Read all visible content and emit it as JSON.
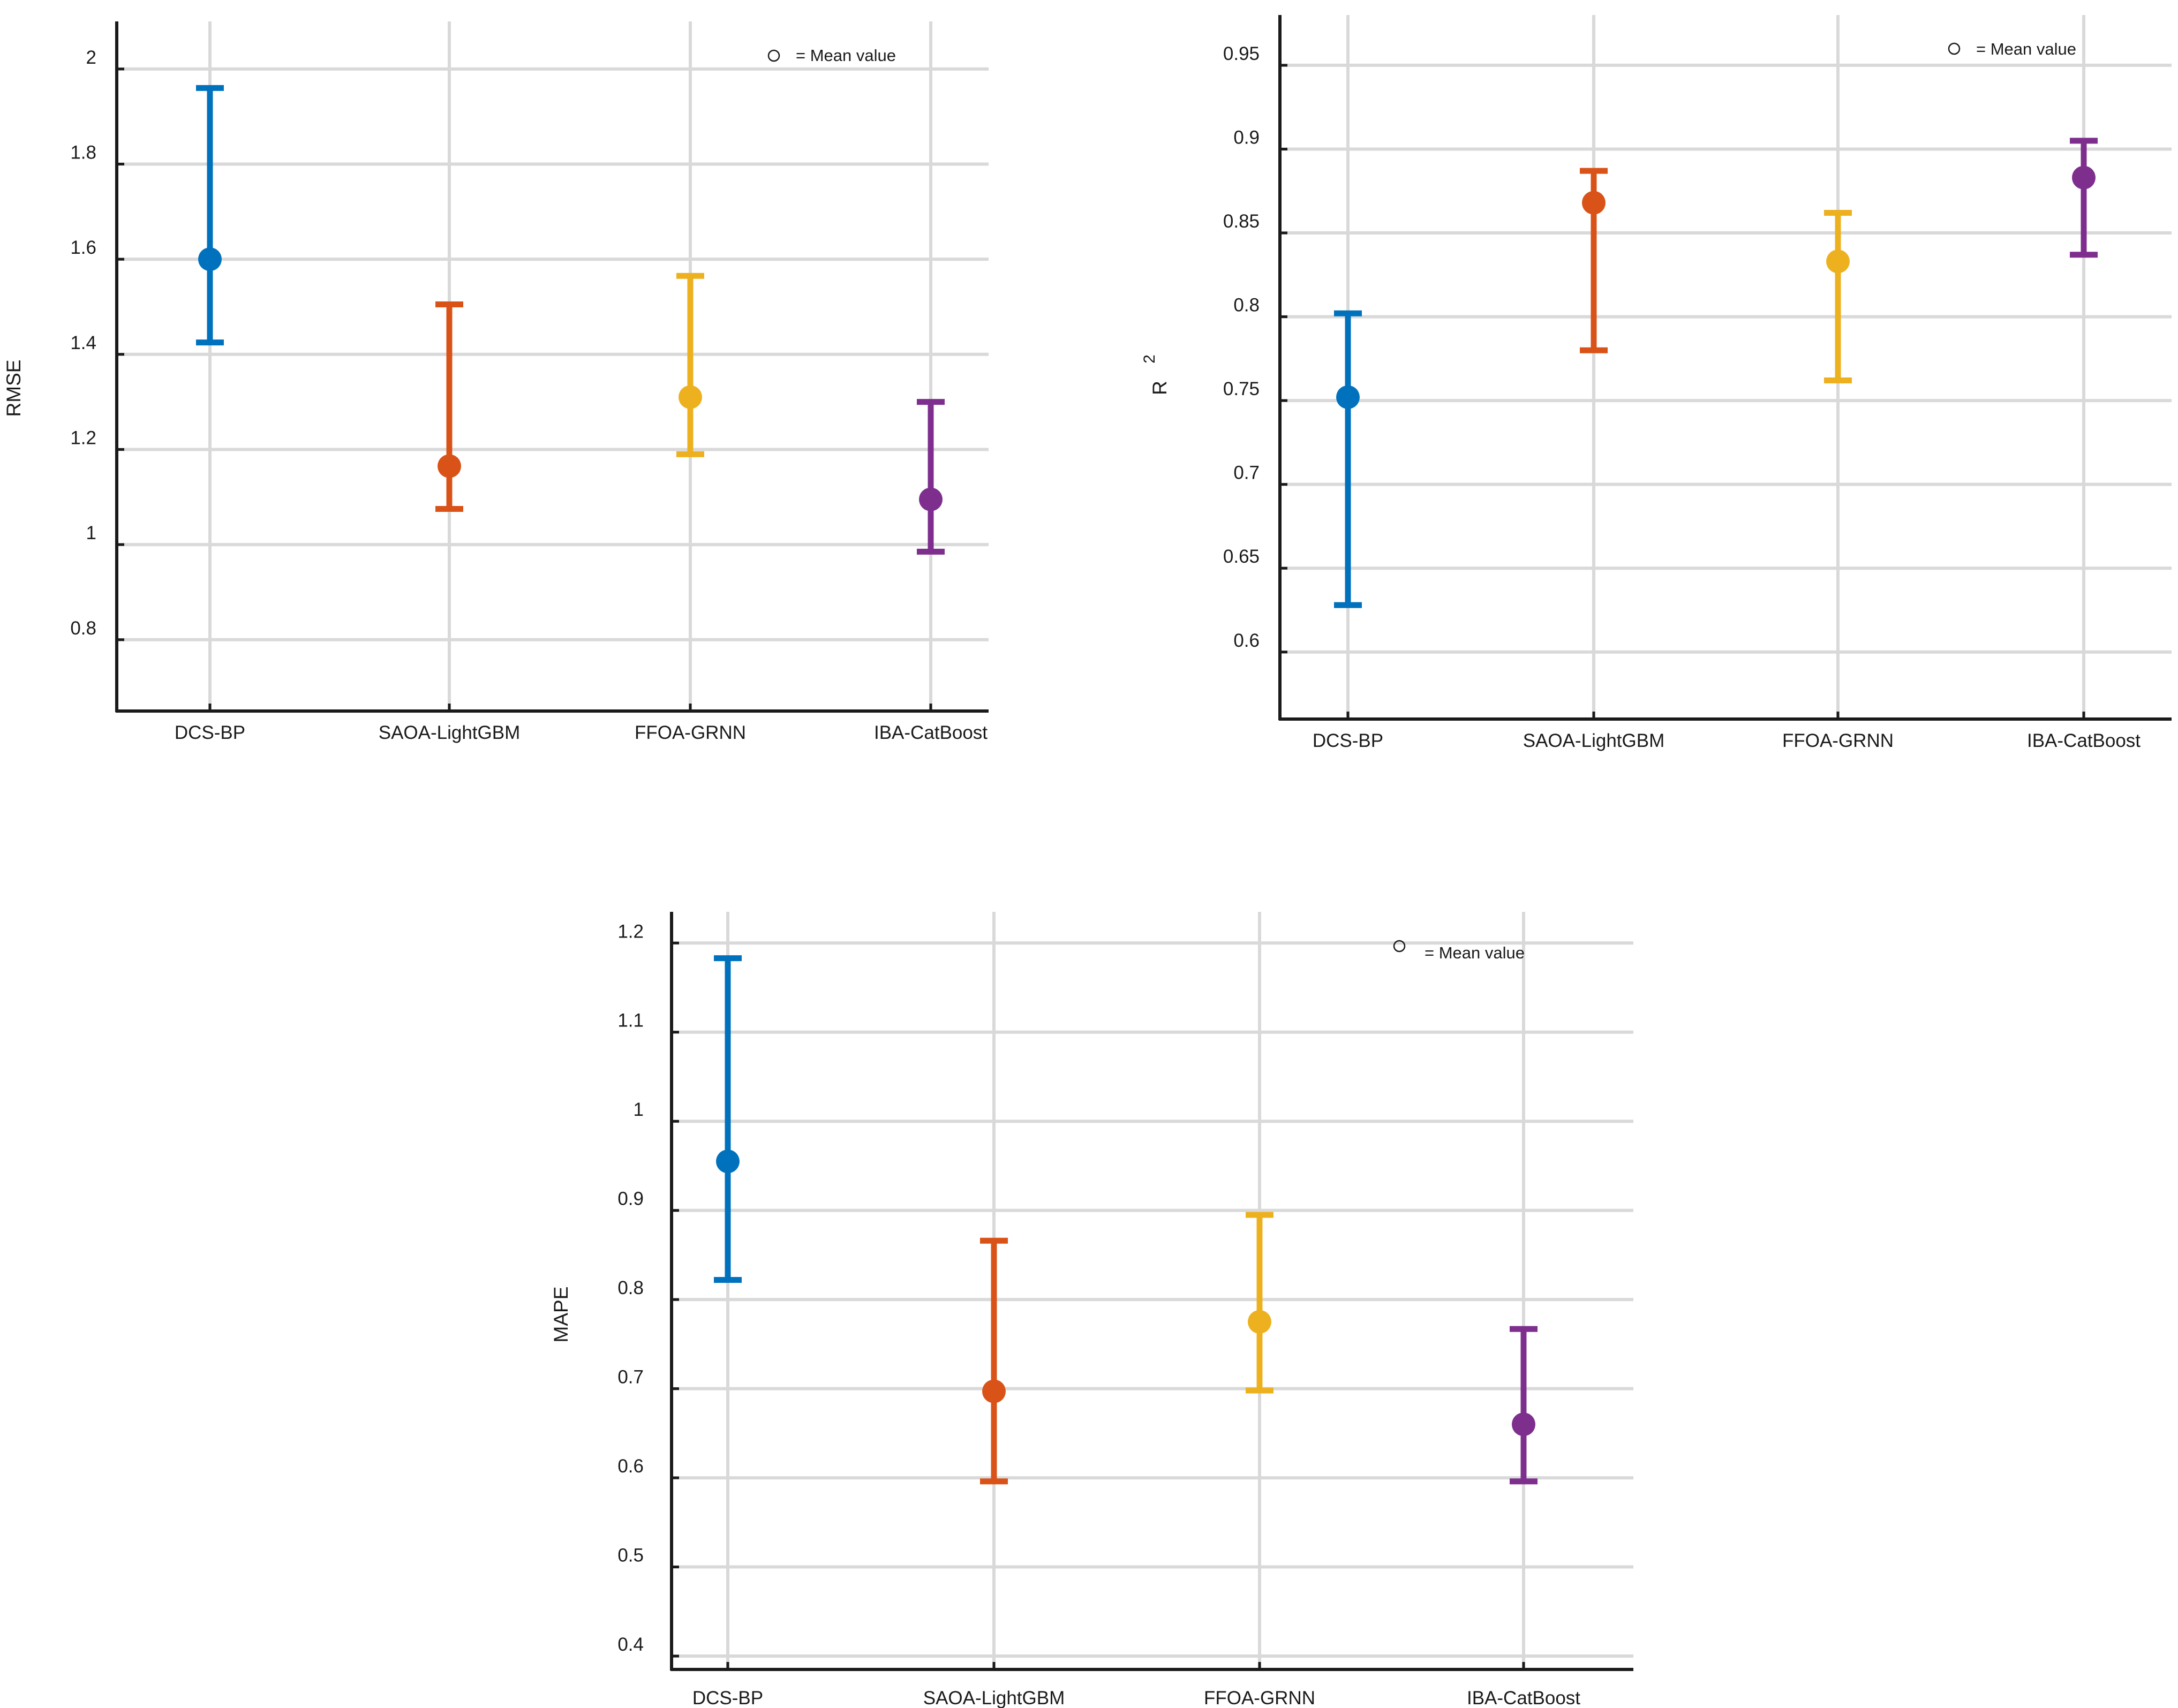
{
  "chart_data": [
    {
      "type": "errorbar",
      "ylabel": "RMSE",
      "ylim": [
        0.65,
        2.1
      ],
      "yticks": [
        0.8,
        1,
        1.2,
        1.4,
        1.6,
        1.8,
        2
      ],
      "ytick_labels": [
        "0.8",
        "1",
        "1.2",
        "1.4",
        "1.6",
        "1.8",
        "2"
      ],
      "categories": [
        "DCS-BP",
        "SAOA-LightGBM",
        "FFOA-GRNN",
        "IBA-CatBoost"
      ],
      "means": [
        1.6,
        1.165,
        1.31,
        1.095
      ],
      "lower": [
        1.425,
        1.075,
        1.19,
        0.985
      ],
      "upper": [
        1.96,
        1.505,
        1.565,
        1.3
      ],
      "legend": "= Mean value",
      "grid": true
    },
    {
      "type": "errorbar",
      "ylabel": "R",
      "ylabel_superscript": "2",
      "ylim": [
        0.56,
        0.98
      ],
      "yticks": [
        0.6,
        0.65,
        0.7,
        0.75,
        0.8,
        0.85,
        0.9,
        0.95
      ],
      "ytick_labels": [
        "0.6",
        "0.65",
        "0.7",
        "0.75",
        "0.8",
        "0.85",
        "0.9",
        "0.95"
      ],
      "categories": [
        "DCS-BP",
        "SAOA-LightGBM",
        "FFOA-GRNN",
        "IBA-CatBoost"
      ],
      "means": [
        0.752,
        0.868,
        0.833,
        0.883
      ],
      "lower": [
        0.628,
        0.78,
        0.762,
        0.837
      ],
      "upper": [
        0.802,
        0.887,
        0.862,
        0.905
      ],
      "legend": "= Mean value",
      "grid": true
    },
    {
      "type": "errorbar",
      "ylabel": "MAPE",
      "ylim": [
        0.385,
        1.235
      ],
      "yticks": [
        0.4,
        0.5,
        0.6,
        0.7,
        0.8,
        0.9,
        1,
        1.1,
        1.2
      ],
      "ytick_labels": [
        "0.4",
        "0.5",
        "0.6",
        "0.7",
        "0.8",
        "0.9",
        "1",
        "1.1",
        "1.2"
      ],
      "categories": [
        "DCS-BP",
        "SAOA-LightGBM",
        "FFOA-GRNN",
        "IBA-CatBoost"
      ],
      "means": [
        0.955,
        0.697,
        0.775,
        0.66
      ],
      "lower": [
        0.822,
        0.596,
        0.698,
        0.596
      ],
      "upper": [
        1.183,
        0.866,
        0.895,
        0.767
      ],
      "legend": "= Mean value",
      "grid": true
    }
  ],
  "colors": {
    "series": [
      "#0072BD",
      "#D95319",
      "#EDB120",
      "#7E2F8E"
    ],
    "grid": "#d9d9d9",
    "axis": "#1a1a1a"
  }
}
